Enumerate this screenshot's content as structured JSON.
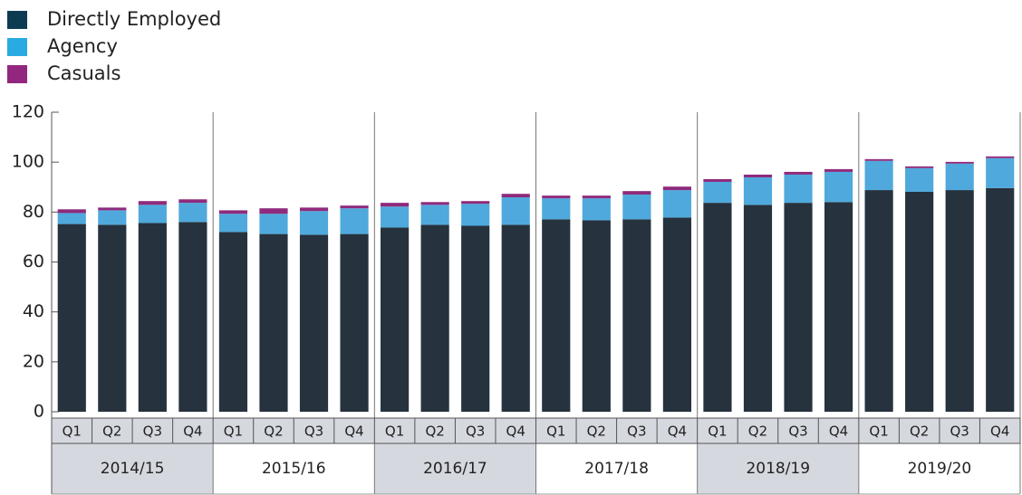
{
  "chart_data": {
    "type": "stacked-bar",
    "categories": [
      "Q1",
      "Q2",
      "Q3",
      "Q4",
      "Q1",
      "Q2",
      "Q3",
      "Q4",
      "Q1",
      "Q2",
      "Q3",
      "Q4",
      "Q1",
      "Q2",
      "Q3",
      "Q4",
      "Q1",
      "Q2",
      "Q3",
      "Q4",
      "Q1",
      "Q2",
      "Q3",
      "Q4"
    ],
    "groups": [
      "2014/15",
      "2015/16",
      "2016/17",
      "2017/18",
      "2018/19",
      "2019/20"
    ],
    "series": [
      {
        "name": "Directly Employed",
        "color": "#26323e",
        "legend_color": "#0d3b52",
        "values": [
          75.2,
          74.9,
          75.6,
          76.0,
          72.0,
          71.2,
          70.9,
          71.2,
          73.8,
          74.9,
          74.5,
          74.9,
          77.1,
          76.7,
          77.1,
          77.8,
          83.7,
          82.9,
          83.7,
          84.0,
          88.8,
          88.1,
          88.8,
          89.6
        ]
      },
      {
        "name": "Agency",
        "color": "#4fa9dc",
        "legend_color": "#29abe2",
        "values": [
          4.4,
          5.8,
          7.3,
          7.7,
          7.3,
          8.1,
          9.5,
          10.3,
          8.4,
          8.0,
          8.8,
          11.0,
          8.4,
          8.8,
          9.9,
          11.0,
          8.4,
          11.0,
          11.3,
          12.1,
          11.7,
          9.5,
          10.6,
          12.0
        ]
      },
      {
        "name": "Casuals",
        "color": "#8f2a7c",
        "legend_color": "#93277f",
        "values": [
          1.5,
          1.1,
          1.5,
          1.4,
          1.4,
          2.2,
          1.4,
          1.1,
          1.5,
          1.1,
          1.1,
          1.4,
          1.1,
          1.1,
          1.4,
          1.4,
          1.1,
          1.1,
          1.1,
          1.1,
          0.7,
          0.7,
          0.7,
          0.7
        ]
      }
    ],
    "ylim": [
      0,
      120
    ],
    "yticks": [
      0,
      20,
      40,
      60,
      80,
      100,
      120
    ]
  }
}
